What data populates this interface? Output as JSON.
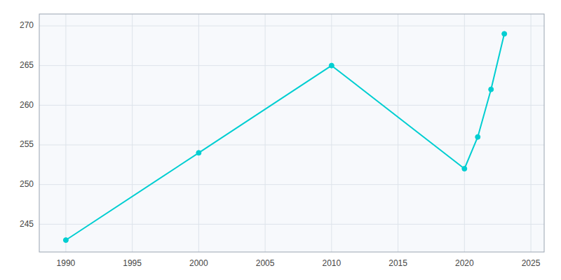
{
  "chart_data": {
    "type": "line",
    "x": [
      1990,
      2000,
      2010,
      2020,
      2021,
      2022,
      2023
    ],
    "values": [
      243,
      254,
      265,
      252,
      256,
      262,
      269
    ],
    "color": "#00CED1",
    "marker": "circle",
    "xlim": [
      1988,
      2026
    ],
    "ylim": [
      241.5,
      271.5
    ],
    "xticks": [
      1990,
      1995,
      2000,
      2005,
      2010,
      2015,
      2020,
      2025
    ],
    "yticks": [
      245,
      250,
      255,
      260,
      265,
      270
    ],
    "grid": true
  }
}
